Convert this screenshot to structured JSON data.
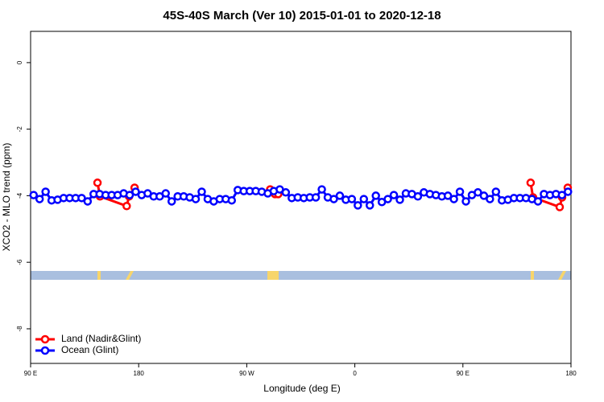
{
  "chart_data": {
    "type": "line",
    "title": "45S-40S March (Ver 10)   2015-01-01 to 2020-12-18",
    "xlabel": "Longitude (deg E)",
    "ylabel": "XCO2 - MLO trend (ppm)",
    "xlim": [
      90,
      540
    ],
    "ylim": [
      -9.04,
      0.94
    ],
    "xticks": [
      {
        "value": 90,
        "label": "90 E"
      },
      180,
      {
        "value": 270,
        "label": "90 W"
      },
      {
        "value": 360,
        "label": "0"
      },
      {
        "value": 450,
        "label": "90 E"
      },
      {
        "value": 540,
        "label": "180"
      }
    ],
    "yticks": [
      0,
      -2,
      -4,
      -6,
      -8
    ],
    "legend": "bottom-left",
    "series": [
      {
        "name": "Land (Nadir&Glint)",
        "color": "#ff0000",
        "x": [
          145.7,
          147.8,
          170.0,
          172.0,
          176.6,
          null,
          289.5,
          293.5,
          296.2,
          null,
          506.4,
          508.4,
          530.6,
          532.6,
          537.3
        ],
        "values": [
          -3.61,
          -4.02,
          -4.31,
          -4.02,
          -3.76,
          null,
          -3.81,
          -3.95,
          -3.95,
          null,
          -3.61,
          -4.05,
          -4.34,
          -4.05,
          -3.76
        ]
      },
      {
        "name": "Ocean (Glint)",
        "color": "#0000ff",
        "x": [
          92.5,
          97.5,
          102.5,
          107.5,
          112.5,
          117.5,
          122.5,
          127.5,
          132.5,
          137.5,
          142.5,
          147.5,
          152.5,
          157.5,
          162.5,
          167.5,
          172.5,
          177.5,
          182.5,
          187.5,
          192.5,
          197.5,
          202.5,
          207.5,
          212.5,
          217.5,
          222.5,
          227.5,
          232.5,
          237.5,
          242.5,
          247.5,
          252.5,
          257.5,
          262.5,
          267.5,
          272.5,
          277.5,
          282.5,
          287.5,
          292.5,
          297.5,
          302.5,
          307.5,
          312.5,
          317.5,
          322.5,
          327.5,
          332.5,
          337.5,
          342.5,
          347.5,
          352.5,
          357.5,
          362.5,
          367.5,
          372.5,
          377.5,
          382.5,
          387.5,
          392.5,
          397.5,
          402.5,
          407.5,
          412.5,
          417.5,
          422.5,
          427.5,
          432.5,
          437.5,
          442.5,
          447.5,
          452.5,
          457.5,
          462.5,
          467.5,
          472.5,
          477.5,
          482.5,
          487.5,
          492.5,
          497.5,
          502.5,
          507.5,
          512.5,
          517.5,
          522.5,
          527.5,
          532.5,
          537.5
        ],
        "values": [
          -3.98,
          -4.1,
          -3.88,
          -4.14,
          -4.12,
          -4.07,
          -4.07,
          -4.07,
          -4.07,
          -4.17,
          -3.95,
          -3.95,
          -3.98,
          -3.98,
          -3.98,
          -3.93,
          -3.98,
          -3.88,
          -3.98,
          -3.93,
          -4.02,
          -4.02,
          -3.93,
          -4.17,
          -4.02,
          -4.02,
          -4.05,
          -4.1,
          -3.88,
          -4.1,
          -4.17,
          -4.1,
          -4.1,
          -4.14,
          -3.83,
          -3.86,
          -3.86,
          -3.86,
          -3.88,
          -3.93,
          -3.86,
          -3.81,
          -3.9,
          -4.07,
          -4.05,
          -4.07,
          -4.05,
          -4.05,
          -3.81,
          -4.05,
          -4.1,
          -4.0,
          -4.12,
          -4.1,
          -4.29,
          -4.1,
          -4.29,
          -4.0,
          -4.19,
          -4.1,
          -3.98,
          -4.12,
          -3.93,
          -3.95,
          -4.02,
          -3.9,
          -3.95,
          -3.98,
          -4.02,
          -4.0,
          -4.1,
          -3.88,
          -4.17,
          -3.98,
          -3.9,
          -4.0,
          -4.1,
          -3.88,
          -4.14,
          -4.12,
          -4.07,
          -4.07,
          -4.07,
          -4.1,
          -4.17,
          -3.95,
          -3.98,
          -3.95,
          -3.98,
          -3.88
        ]
      }
    ]
  }
}
